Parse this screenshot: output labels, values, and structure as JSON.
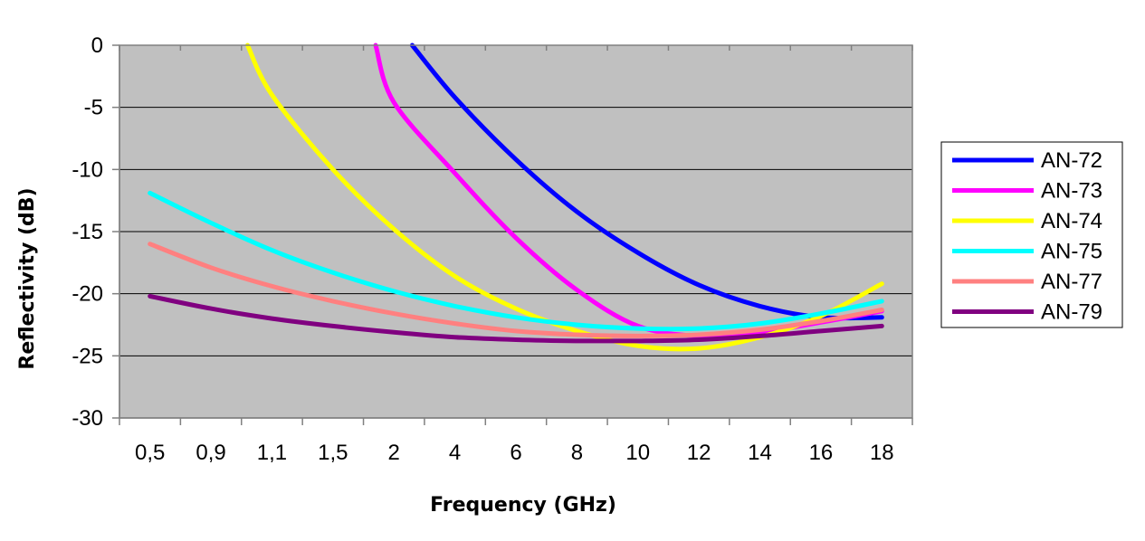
{
  "chart_data": {
    "type": "line",
    "xlabel": "Frequency (GHz)",
    "ylabel": "Reflectivity (dB)",
    "ylim": [
      -30,
      0
    ],
    "yticks": [
      0,
      -5,
      -10,
      -15,
      -20,
      -25,
      -30
    ],
    "x_categories": [
      "0,5",
      "0,9",
      "1,1",
      "1,5",
      "2",
      "4",
      "6",
      "8",
      "10",
      "12",
      "14",
      "16",
      "18"
    ],
    "x_scale": "categorical",
    "grid": "horizontal",
    "plot_background": "#c0c0c0",
    "legend_position": "right",
    "series": [
      {
        "name": "AN-72",
        "color": "#0000ff",
        "points": [
          [
            4.3,
            0
          ],
          [
            5,
            -4.2
          ],
          [
            6,
            -9.2
          ],
          [
            7,
            -13.4
          ],
          [
            8,
            -16.7
          ],
          [
            9,
            -19.3
          ],
          [
            10,
            -21
          ],
          [
            11,
            -21.9
          ],
          [
            12,
            -21.9
          ]
        ]
      },
      {
        "name": "AN-73",
        "color": "#ff00ff",
        "points": [
          [
            3.7,
            0
          ],
          [
            4,
            -4.6
          ],
          [
            5,
            -10.3
          ],
          [
            6,
            -15.5
          ],
          [
            7,
            -19.7
          ],
          [
            8,
            -22.6
          ],
          [
            9,
            -23.4
          ],
          [
            10,
            -23.1
          ],
          [
            11,
            -22.3
          ],
          [
            12,
            -21.4
          ]
        ]
      },
      {
        "name": "AN-74",
        "color": "#ffff00",
        "points": [
          [
            1.6,
            0
          ],
          [
            2,
            -4
          ],
          [
            3,
            -10
          ],
          [
            4,
            -14.8
          ],
          [
            5,
            -18.6
          ],
          [
            6,
            -21.2
          ],
          [
            7,
            -23
          ],
          [
            8,
            -24.2
          ],
          [
            9,
            -24.4
          ],
          [
            10,
            -23.5
          ],
          [
            11,
            -21.8
          ],
          [
            12,
            -19.2
          ]
        ]
      },
      {
        "name": "AN-75",
        "color": "#00ffff",
        "points": [
          [
            0,
            -11.9
          ],
          [
            1,
            -14.3
          ],
          [
            2,
            -16.5
          ],
          [
            3,
            -18.3
          ],
          [
            4,
            -19.8
          ],
          [
            5,
            -21
          ],
          [
            6,
            -21.9
          ],
          [
            7,
            -22.5
          ],
          [
            8,
            -22.8
          ],
          [
            9,
            -22.8
          ],
          [
            10,
            -22.4
          ],
          [
            11,
            -21.6
          ],
          [
            12,
            -20.6
          ]
        ]
      },
      {
        "name": "AN-77",
        "color": "#ff8080",
        "points": [
          [
            0,
            -16
          ],
          [
            1,
            -17.9
          ],
          [
            2,
            -19.4
          ],
          [
            3,
            -20.6
          ],
          [
            4,
            -21.6
          ],
          [
            5,
            -22.4
          ],
          [
            6,
            -23
          ],
          [
            7,
            -23.3
          ],
          [
            8,
            -23.4
          ],
          [
            9,
            -23.3
          ],
          [
            10,
            -22.9
          ],
          [
            11,
            -22.2
          ],
          [
            12,
            -21.3
          ]
        ]
      },
      {
        "name": "AN-79",
        "color": "#800080",
        "points": [
          [
            0,
            -20.2
          ],
          [
            1,
            -21.2
          ],
          [
            2,
            -22
          ],
          [
            3,
            -22.6
          ],
          [
            4,
            -23.1
          ],
          [
            5,
            -23.5
          ],
          [
            6,
            -23.7
          ],
          [
            7,
            -23.8
          ],
          [
            8,
            -23.8
          ],
          [
            9,
            -23.7
          ],
          [
            10,
            -23.4
          ],
          [
            11,
            -23
          ],
          [
            12,
            -22.6
          ]
        ]
      }
    ]
  }
}
